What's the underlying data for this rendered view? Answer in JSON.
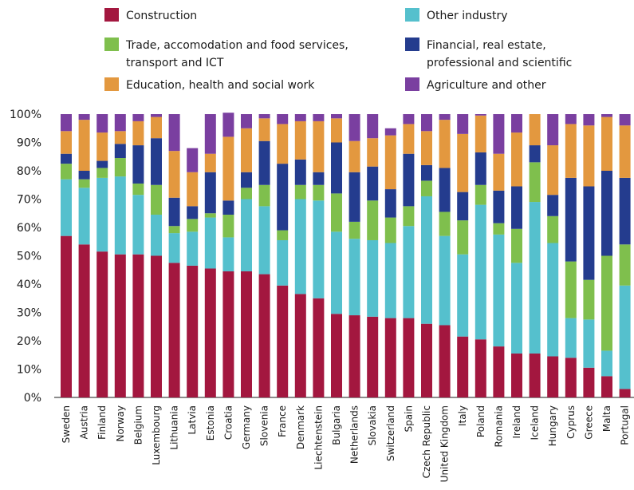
{
  "chart_data": {
    "type": "bar",
    "stacked": true,
    "normalized": true,
    "ylim": [
      0,
      100
    ],
    "y_ticks": [
      "0%",
      "10%",
      "20%",
      "30%",
      "40%",
      "50%",
      "60%",
      "70%",
      "80%",
      "90%",
      "100%"
    ],
    "grid": false,
    "legend_position": "top",
    "categories": [
      "Sweden",
      "Austria",
      "Finland",
      "Norway",
      "Belgium",
      "Luxembourg",
      "Lithuania",
      "Latvia",
      "Estonia",
      "Croatia",
      "Germany",
      "Slovenia",
      "France",
      "Denmark",
      "Liechtenstein",
      "Bulgaria",
      "Netherlands",
      "Slovakia",
      "Switzerland",
      "Spain",
      "Czech Republic",
      "United Kingdom",
      "Italy",
      "Poland",
      "Romania",
      "Ireland",
      "Iceland",
      "Hungary",
      "Cyprus",
      "Greece",
      "Malta",
      "Portugal"
    ],
    "series": [
      {
        "name": "Construction",
        "color": "#a3173f",
        "values": [
          57,
          54,
          51.5,
          50.5,
          50.5,
          50,
          47.5,
          46.5,
          45.5,
          44.5,
          44.5,
          43.5,
          39.5,
          36.5,
          35,
          29.5,
          29,
          28.5,
          28,
          28,
          26,
          25.5,
          21.5,
          20.5,
          18,
          15.5,
          15.5,
          14.5,
          14,
          10.5,
          7.5,
          3
        ]
      },
      {
        "name": "Other industry",
        "color": "#55c0cd",
        "values": [
          20,
          20,
          26,
          27.5,
          21,
          14.5,
          10.5,
          12,
          18,
          12,
          25.5,
          24,
          16,
          33.5,
          34.5,
          29,
          27,
          27,
          26.5,
          32.5,
          45,
          31.5,
          29,
          47.5,
          39.5,
          32,
          53.5,
          40,
          14,
          17,
          9,
          36.5
        ]
      },
      {
        "name": "Trade, accomodation and food services, transport and ICT",
        "color": "#7fbf4d",
        "values": [
          5.5,
          3,
          3.5,
          6.5,
          4,
          10.5,
          2.5,
          4.5,
          1.5,
          8,
          4,
          7.5,
          3.5,
          5,
          5.5,
          13.5,
          6,
          14,
          9,
          7,
          5.5,
          8.5,
          12,
          7,
          4,
          12,
          14,
          9.5,
          20,
          14,
          33.5,
          14.5
        ]
      },
      {
        "name": "Financial, real estate, professional and scientific",
        "color": "#243c8e",
        "values": [
          3.5,
          3,
          2.5,
          5,
          13.5,
          16.5,
          10,
          4.5,
          14.5,
          5,
          5.5,
          15.5,
          23.5,
          9,
          4.5,
          18,
          17.5,
          12,
          10,
          18.5,
          5.5,
          15.5,
          10,
          11.5,
          11.5,
          15,
          6,
          7.5,
          29.5,
          33,
          30,
          23.5
        ]
      },
      {
        "name": "Education, health and social work",
        "color": "#e3983f",
        "values": [
          8,
          18,
          10,
          4.5,
          8.5,
          7.5,
          16.5,
          12,
          6.5,
          22.5,
          15.5,
          8,
          14,
          13.5,
          18,
          8.5,
          11,
          10,
          19,
          10.5,
          12,
          17,
          20.5,
          13,
          13,
          19,
          11,
          17.5,
          19,
          21.5,
          19,
          18.5
        ]
      },
      {
        "name": "Agriculture and other",
        "color": "#7a3fa0",
        "values": [
          6,
          2,
          6.5,
          6,
          2.5,
          1,
          13,
          8.5,
          14,
          8.5,
          5,
          1.5,
          3.5,
          2.5,
          2.5,
          1.5,
          9.5,
          8.5,
          2.5,
          3.5,
          6,
          2,
          7,
          0.5,
          14,
          6.5,
          0,
          11,
          3.5,
          4,
          1,
          4
        ]
      }
    ]
  }
}
